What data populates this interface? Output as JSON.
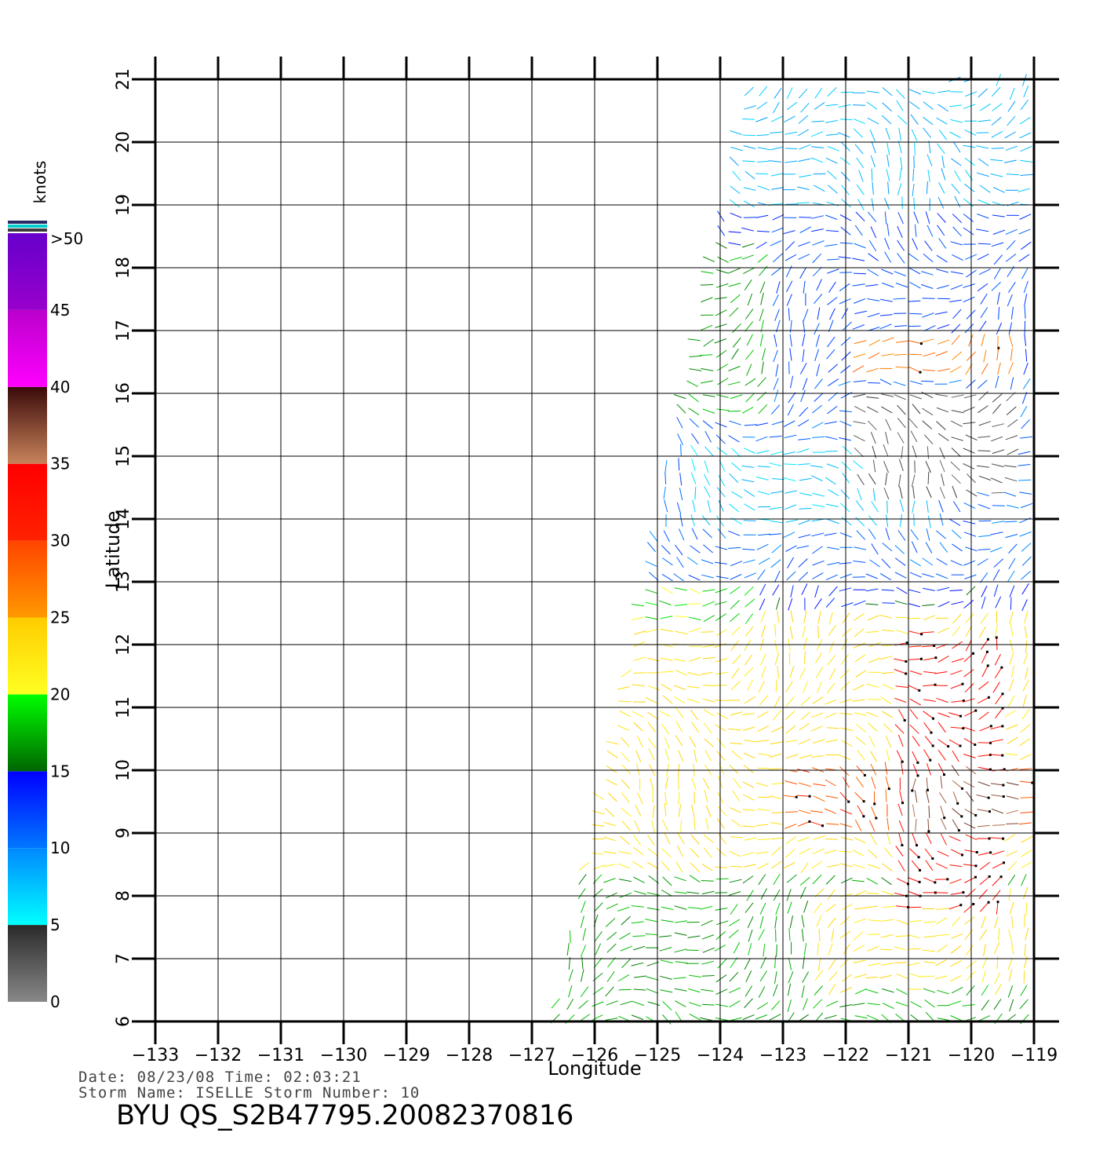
{
  "chart_data": {
    "type": "wind-vector-map",
    "xlabel": "Longitude",
    "ylabel": "Latitude",
    "xlim": [
      -133,
      -119
    ],
    "ylim": [
      6,
      21
    ],
    "x_ticks": [
      "-133",
      "-132",
      "-131",
      "-130",
      "-129",
      "-128",
      "-127",
      "-126",
      "-125",
      "-124",
      "-123",
      "-122",
      "-121",
      "-120",
      "-119"
    ],
    "y_ticks": [
      "6",
      "7",
      "8",
      "9",
      "10",
      "11",
      "12",
      "13",
      "14",
      "15",
      "16",
      "17",
      "18",
      "19",
      "20",
      "21"
    ],
    "grid": true,
    "swath_corners_lonlat": [
      [
        -126.7,
        6.0
      ],
      [
        -119,
        6.0
      ],
      [
        -119,
        21.0
      ],
      [
        -123.6,
        21.0
      ]
    ],
    "colorbar": {
      "unit": "knots",
      "labels": [
        "0",
        "5",
        "10",
        "15",
        "20",
        "25",
        "30",
        "35",
        "40",
        "45",
        ">50"
      ],
      "segments": [
        {
          "from": 0,
          "to": 5,
          "colors": [
            "#888888",
            "#2a2a2a"
          ]
        },
        {
          "from": 5,
          "to": 10,
          "colors": [
            "#00ffff",
            "#0088ff"
          ]
        },
        {
          "from": 10,
          "to": 15,
          "colors": [
            "#0077ff",
            "#0000ff"
          ]
        },
        {
          "from": 15,
          "to": 20,
          "colors": [
            "#006600",
            "#00ff00"
          ]
        },
        {
          "from": 20,
          "to": 25,
          "colors": [
            "#ffff22",
            "#ffcc00"
          ]
        },
        {
          "from": 25,
          "to": 30,
          "colors": [
            "#ff9900",
            "#ff4400"
          ]
        },
        {
          "from": 30,
          "to": 35,
          "colors": [
            "#ff2200",
            "#ff0000"
          ]
        },
        {
          "from": 35,
          "to": 40,
          "colors": [
            "#c8835a",
            "#3a0a0a"
          ]
        },
        {
          "from": 40,
          "to": 45,
          "colors": [
            "#ff00ff",
            "#bb00cc"
          ]
        },
        {
          "from": 45,
          "to": 50,
          "colors": [
            "#9900cc",
            "#6600cc"
          ]
        }
      ]
    },
    "speed_regions": [
      {
        "lon": [
          -126.7,
          -119
        ],
        "lat": [
          6,
          8.3
        ],
        "speed": 17
      },
      {
        "lon": [
          -122.5,
          -119
        ],
        "lat": [
          6.5,
          8.2
        ],
        "speed": 23
      },
      {
        "lon": [
          -126.3,
          -119
        ],
        "lat": [
          8.3,
          12.5
        ],
        "speed": 23
      },
      {
        "lon": [
          -123.0,
          -119
        ],
        "lat": [
          9.0,
          10.2
        ],
        "speed": 29
      },
      {
        "lon": [
          -121.3,
          -119.5
        ],
        "lat": [
          7.8,
          12.2
        ],
        "speed": 33
      },
      {
        "lon": [
          -121.0,
          -119.3
        ],
        "lat": [
          9.0,
          10.0
        ],
        "speed": 37
      },
      {
        "lon": [
          -125.6,
          -123.5
        ],
        "lat": [
          12.3,
          13.2
        ],
        "speed": 19
      },
      {
        "lon": [
          -125.6,
          -119
        ],
        "lat": [
          12.9,
          16.3
        ],
        "speed": 11
      },
      {
        "lon": [
          -124.5,
          -120.5
        ],
        "lat": [
          13.8,
          15.2
        ],
        "speed": 7
      },
      {
        "lon": [
          -121.8,
          -119.3
        ],
        "lat": [
          14.4,
          16.0
        ],
        "speed": 3
      },
      {
        "lon": [
          -125.0,
          -123.2
        ],
        "lat": [
          15.6,
          18.2
        ],
        "speed": 17
      },
      {
        "lon": [
          -123.2,
          -119
        ],
        "lat": [
          16.2,
          21
        ],
        "speed": 12
      },
      {
        "lon": [
          -121.8,
          -119.2
        ],
        "lat": [
          16.3,
          16.9
        ],
        "speed": 27
      },
      {
        "lon": [
          -124.0,
          -119
        ],
        "lat": [
          19.0,
          21
        ],
        "speed": 8
      }
    ]
  },
  "info": {
    "date_line": "Date: 08/23/08   Time: 02:03:21",
    "storm_line": "Storm  Name: ISELLE    Storm  Number: 10",
    "file_id": "BYU  QS_S2B47795.20082370816"
  }
}
